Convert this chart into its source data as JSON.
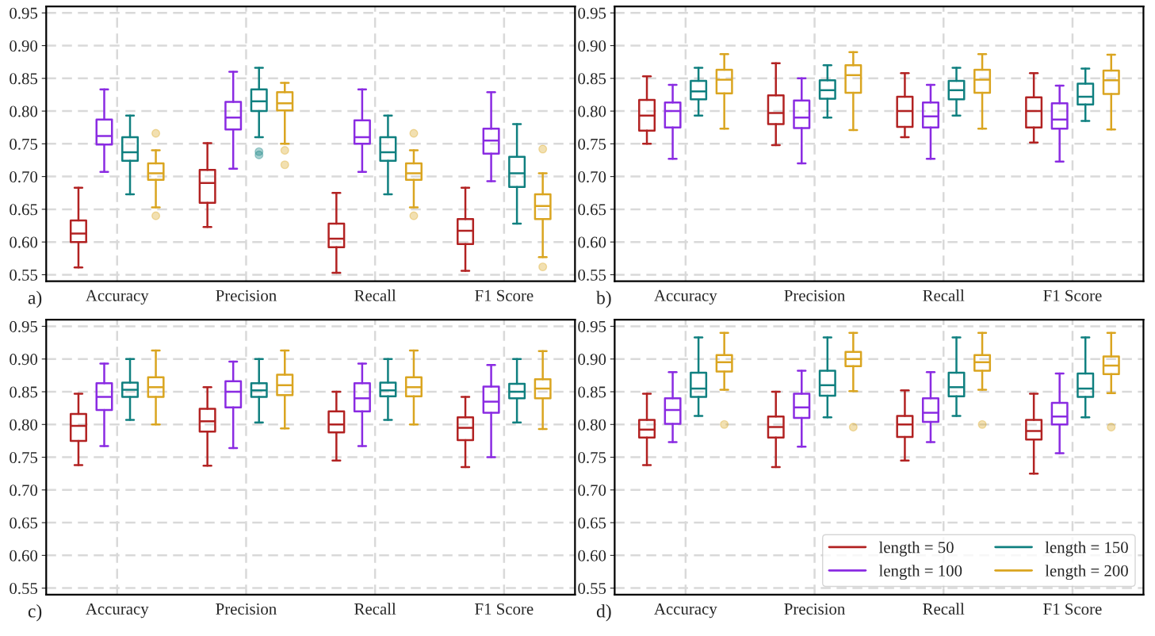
{
  "chart_data": [
    {
      "type": "box",
      "categories": [
        "Accuracy",
        "Precision",
        "Recall",
        "F1 Score"
      ],
      "ylim": [
        0.54,
        0.96
      ],
      "yticks": [
        0.55,
        {
          "value": 0.6,
          "label": "0.60"
        },
        0.65,
        {
          "value": 0.7,
          "label": "0.70"
        },
        0.75,
        {
          "value": 0.8,
          "label": "0.80"
        },
        0.85,
        {
          "value": 0.9,
          "label": "0.90"
        },
        0.95
      ],
      "grid": true,
      "legend": false,
      "annotations": [
        "a)"
      ],
      "series": [
        {
          "color": "#b22222",
          "boxes": [
            {
              "low": 0.561,
              "q1": 0.6,
              "median": 0.613,
              "q3": 0.633,
              "high": 0.683
            },
            {
              "low": 0.623,
              "q1": 0.66,
              "median": 0.69,
              "q3": 0.71,
              "high": 0.751
            },
            {
              "low": 0.553,
              "q1": 0.592,
              "median": 0.605,
              "q3": 0.628,
              "high": 0.675
            },
            {
              "low": 0.556,
              "q1": 0.597,
              "median": 0.617,
              "q3": 0.635,
              "high": 0.683
            }
          ]
        },
        {
          "color": "#8a2be2",
          "boxes": [
            {
              "low": 0.707,
              "q1": 0.749,
              "median": 0.762,
              "q3": 0.787,
              "high": 0.833
            },
            {
              "low": 0.712,
              "q1": 0.772,
              "median": 0.79,
              "q3": 0.814,
              "high": 0.86
            },
            {
              "low": 0.707,
              "q1": 0.75,
              "median": 0.76,
              "q3": 0.786,
              "high": 0.833
            },
            {
              "low": 0.693,
              "q1": 0.735,
              "median": 0.755,
              "q3": 0.773,
              "high": 0.829
            }
          ]
        },
        {
          "color": "#108080",
          "boxes": [
            {
              "low": 0.673,
              "q1": 0.724,
              "median": 0.737,
              "q3": 0.76,
              "high": 0.793
            },
            {
              "low": 0.76,
              "q1": 0.8,
              "median": 0.815,
              "q3": 0.833,
              "high": 0.866,
              "outliers": [
                0.738,
                0.733
              ]
            },
            {
              "low": 0.673,
              "q1": 0.724,
              "median": 0.737,
              "q3": 0.76,
              "high": 0.793
            },
            {
              "low": 0.628,
              "q1": 0.684,
              "median": 0.705,
              "q3": 0.73,
              "high": 0.78
            }
          ]
        },
        {
          "color": "#daa520",
          "boxes": [
            {
              "low": 0.653,
              "q1": 0.695,
              "median": 0.705,
              "q3": 0.72,
              "high": 0.74,
              "outliers": [
                0.766,
                0.64
              ]
            },
            {
              "low": 0.75,
              "q1": 0.801,
              "median": 0.812,
              "q3": 0.829,
              "high": 0.843,
              "outliers": [
                0.74,
                0.718
              ]
            },
            {
              "low": 0.653,
              "q1": 0.695,
              "median": 0.705,
              "q3": 0.72,
              "high": 0.74,
              "outliers": [
                0.766,
                0.64
              ]
            },
            {
              "low": 0.577,
              "q1": 0.635,
              "median": 0.655,
              "q3": 0.673,
              "high": 0.705,
              "outliers": [
                0.742,
                0.562
              ]
            }
          ]
        }
      ]
    },
    {
      "type": "box",
      "categories": [
        "Accuracy",
        "Precision",
        "Recall",
        "F1 Score"
      ],
      "ylim": [
        0.54,
        0.96
      ],
      "yticks": [
        0.55,
        {
          "value": 0.6,
          "label": "0.60"
        },
        0.65,
        {
          "value": 0.7,
          "label": "0.70"
        },
        0.75,
        {
          "value": 0.8,
          "label": "0.80"
        },
        0.85,
        {
          "value": 0.9,
          "label": "0.90"
        },
        0.95
      ],
      "grid": true,
      "legend": false,
      "annotations": [
        "b)"
      ],
      "series": [
        {
          "color": "#b22222",
          "boxes": [
            {
              "low": 0.75,
              "q1": 0.77,
              "median": 0.793,
              "q3": 0.817,
              "high": 0.853
            },
            {
              "low": 0.748,
              "q1": 0.78,
              "median": 0.797,
              "q3": 0.824,
              "high": 0.873
            },
            {
              "low": 0.76,
              "q1": 0.776,
              "median": 0.8,
              "q3": 0.822,
              "high": 0.858
            },
            {
              "low": 0.752,
              "q1": 0.775,
              "median": 0.8,
              "q3": 0.821,
              "high": 0.858
            }
          ]
        },
        {
          "color": "#8a2be2",
          "boxes": [
            {
              "low": 0.727,
              "q1": 0.775,
              "median": 0.8,
              "q3": 0.813,
              "high": 0.84
            },
            {
              "low": 0.72,
              "q1": 0.774,
              "median": 0.79,
              "q3": 0.816,
              "high": 0.85
            },
            {
              "low": 0.727,
              "q1": 0.775,
              "median": 0.792,
              "q3": 0.813,
              "high": 0.84
            },
            {
              "low": 0.723,
              "q1": 0.773,
              "median": 0.787,
              "q3": 0.812,
              "high": 0.839
            }
          ]
        },
        {
          "color": "#108080",
          "boxes": [
            {
              "low": 0.793,
              "q1": 0.818,
              "median": 0.83,
              "q3": 0.846,
              "high": 0.866
            },
            {
              "low": 0.79,
              "q1": 0.819,
              "median": 0.832,
              "q3": 0.847,
              "high": 0.87
            },
            {
              "low": 0.793,
              "q1": 0.818,
              "median": 0.832,
              "q3": 0.846,
              "high": 0.866
            },
            {
              "low": 0.785,
              "q1": 0.81,
              "median": 0.822,
              "q3": 0.842,
              "high": 0.865
            }
          ]
        },
        {
          "color": "#daa520",
          "boxes": [
            {
              "low": 0.773,
              "q1": 0.827,
              "median": 0.848,
              "q3": 0.863,
              "high": 0.887
            },
            {
              "low": 0.771,
              "q1": 0.828,
              "median": 0.855,
              "q3": 0.87,
              "high": 0.89
            },
            {
              "low": 0.773,
              "q1": 0.828,
              "median": 0.848,
              "q3": 0.863,
              "high": 0.887
            },
            {
              "low": 0.772,
              "q1": 0.826,
              "median": 0.847,
              "q3": 0.862,
              "high": 0.886
            }
          ]
        }
      ]
    },
    {
      "type": "box",
      "categories": [
        "Accuracy",
        "Precision",
        "Recall",
        "F1 Score"
      ],
      "ylim": [
        0.54,
        0.96
      ],
      "yticks": [
        0.55,
        {
          "value": 0.6,
          "label": "0.60"
        },
        0.65,
        {
          "value": 0.7,
          "label": "0.70"
        },
        0.75,
        {
          "value": 0.8,
          "label": "0.80"
        },
        0.85,
        {
          "value": 0.9,
          "label": "0.90"
        },
        0.95
      ],
      "grid": true,
      "legend": false,
      "annotations": [
        "c)"
      ],
      "series": [
        {
          "color": "#b22222",
          "boxes": [
            {
              "low": 0.738,
              "q1": 0.775,
              "median": 0.798,
              "q3": 0.816,
              "high": 0.847
            },
            {
              "low": 0.737,
              "q1": 0.789,
              "median": 0.805,
              "q3": 0.824,
              "high": 0.857
            },
            {
              "low": 0.745,
              "q1": 0.788,
              "median": 0.8,
              "q3": 0.82,
              "high": 0.85
            },
            {
              "low": 0.735,
              "q1": 0.776,
              "median": 0.795,
              "q3": 0.811,
              "high": 0.842
            }
          ]
        },
        {
          "color": "#8a2be2",
          "boxes": [
            {
              "low": 0.767,
              "q1": 0.822,
              "median": 0.842,
              "q3": 0.863,
              "high": 0.893
            },
            {
              "low": 0.764,
              "q1": 0.826,
              "median": 0.85,
              "q3": 0.866,
              "high": 0.896
            },
            {
              "low": 0.767,
              "q1": 0.82,
              "median": 0.84,
              "q3": 0.863,
              "high": 0.893
            },
            {
              "low": 0.75,
              "q1": 0.818,
              "median": 0.835,
              "q3": 0.858,
              "high": 0.891
            }
          ]
        },
        {
          "color": "#108080",
          "boxes": [
            {
              "low": 0.807,
              "q1": 0.842,
              "median": 0.853,
              "q3": 0.864,
              "high": 0.9
            },
            {
              "low": 0.803,
              "q1": 0.842,
              "median": 0.852,
              "q3": 0.863,
              "high": 0.9
            },
            {
              "low": 0.807,
              "q1": 0.843,
              "median": 0.852,
              "q3": 0.864,
              "high": 0.9
            },
            {
              "low": 0.803,
              "q1": 0.84,
              "median": 0.85,
              "q3": 0.862,
              "high": 0.9
            }
          ]
        },
        {
          "color": "#daa520",
          "boxes": [
            {
              "low": 0.8,
              "q1": 0.842,
              "median": 0.857,
              "q3": 0.872,
              "high": 0.913
            },
            {
              "low": 0.794,
              "q1": 0.845,
              "median": 0.86,
              "q3": 0.876,
              "high": 0.913
            },
            {
              "low": 0.8,
              "q1": 0.843,
              "median": 0.857,
              "q3": 0.872,
              "high": 0.913
            },
            {
              "low": 0.793,
              "q1": 0.84,
              "median": 0.855,
              "q3": 0.869,
              "high": 0.912
            }
          ]
        }
      ]
    },
    {
      "type": "box",
      "categories": [
        "Accuracy",
        "Precision",
        "Recall",
        "F1 Score"
      ],
      "ylim": [
        0.54,
        0.96
      ],
      "yticks": [
        0.55,
        {
          "value": 0.6,
          "label": "0.60"
        },
        0.65,
        {
          "value": 0.7,
          "label": "0.70"
        },
        0.75,
        {
          "value": 0.8,
          "label": "0.80"
        },
        0.85,
        {
          "value": 0.9,
          "label": "0.90"
        },
        0.95
      ],
      "grid": true,
      "legend": "bottom right",
      "annotations": [
        "d)"
      ],
      "series": [
        {
          "name": "length = 50",
          "color": "#b22222",
          "boxes": [
            {
              "low": 0.738,
              "q1": 0.78,
              "median": 0.792,
              "q3": 0.807,
              "high": 0.847
            },
            {
              "low": 0.735,
              "q1": 0.78,
              "median": 0.796,
              "q3": 0.812,
              "high": 0.85
            },
            {
              "low": 0.745,
              "q1": 0.781,
              "median": 0.8,
              "q3": 0.813,
              "high": 0.852
            },
            {
              "low": 0.725,
              "q1": 0.777,
              "median": 0.79,
              "q3": 0.807,
              "high": 0.847
            }
          ]
        },
        {
          "name": "length = 100",
          "color": "#8a2be2",
          "boxes": [
            {
              "low": 0.773,
              "q1": 0.801,
              "median": 0.822,
              "q3": 0.84,
              "high": 0.88
            },
            {
              "low": 0.766,
              "q1": 0.81,
              "median": 0.826,
              "q3": 0.847,
              "high": 0.882
            },
            {
              "low": 0.773,
              "q1": 0.804,
              "median": 0.818,
              "q3": 0.84,
              "high": 0.88
            },
            {
              "low": 0.756,
              "q1": 0.8,
              "median": 0.812,
              "q3": 0.833,
              "high": 0.878
            }
          ]
        },
        {
          "name": "length = 150",
          "color": "#108080",
          "boxes": [
            {
              "low": 0.813,
              "q1": 0.842,
              "median": 0.855,
              "q3": 0.879,
              "high": 0.933
            },
            {
              "low": 0.811,
              "q1": 0.844,
              "median": 0.86,
              "q3": 0.882,
              "high": 0.933
            },
            {
              "low": 0.813,
              "q1": 0.843,
              "median": 0.857,
              "q3": 0.879,
              "high": 0.933
            },
            {
              "low": 0.811,
              "q1": 0.842,
              "median": 0.855,
              "q3": 0.878,
              "high": 0.933
            }
          ]
        },
        {
          "name": "length = 200",
          "color": "#daa520",
          "boxes": [
            {
              "low": 0.853,
              "q1": 0.881,
              "median": 0.895,
              "q3": 0.906,
              "high": 0.94,
              "outliers": [
                0.8
              ]
            },
            {
              "low": 0.851,
              "q1": 0.889,
              "median": 0.9,
              "q3": 0.911,
              "high": 0.94,
              "outliers": [
                0.796
              ]
            },
            {
              "low": 0.853,
              "q1": 0.882,
              "median": 0.895,
              "q3": 0.906,
              "high": 0.94,
              "outliers": [
                0.8
              ]
            },
            {
              "low": 0.848,
              "q1": 0.877,
              "median": 0.89,
              "q3": 0.904,
              "high": 0.94,
              "outliers": [
                0.796
              ]
            }
          ]
        }
      ]
    }
  ]
}
